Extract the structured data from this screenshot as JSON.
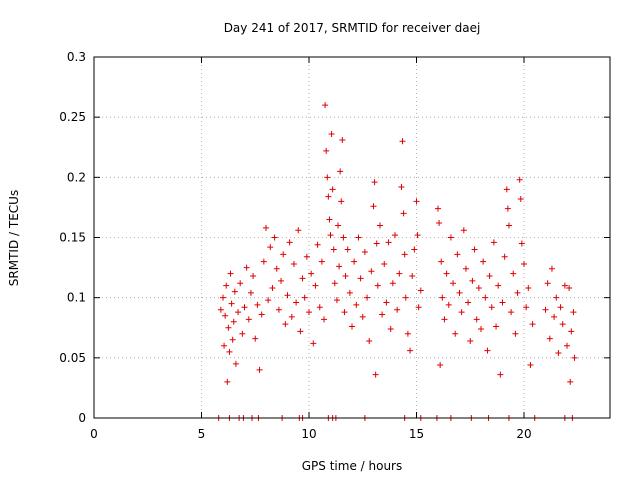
{
  "chart_data": {
    "type": "scatter",
    "title": "Day 241 of 2017, SRMTID for receiver daej",
    "xlabel": "GPS time / hours",
    "ylabel": "SRMTID / TECUs",
    "xlim": [
      0,
      24
    ],
    "ylim": [
      0,
      0.3
    ],
    "x_ticks": [
      0,
      5,
      10,
      15,
      20
    ],
    "x_tick_labels": [
      "0",
      "5",
      "10",
      "15",
      "20"
    ],
    "y_ticks": [
      0,
      0.05,
      0.1,
      0.15,
      0.2,
      0.25,
      0.3
    ],
    "y_tick_labels": [
      "0",
      "0.05",
      "0.1",
      "0.15",
      "0.2",
      "0.25",
      "0.3"
    ],
    "grid": true,
    "marker": "+",
    "color": "#e00000",
    "series": [
      {
        "name": "SRMTID",
        "points": [
          [
            5.9,
            0.09
          ],
          [
            6.0,
            0.1
          ],
          [
            6.05,
            0.06
          ],
          [
            6.1,
            0.085
          ],
          [
            6.15,
            0.11
          ],
          [
            6.2,
            0.03
          ],
          [
            6.25,
            0.075
          ],
          [
            6.3,
            0.055
          ],
          [
            6.35,
            0.12
          ],
          [
            6.4,
            0.095
          ],
          [
            6.45,
            0.065
          ],
          [
            6.5,
            0.08
          ],
          [
            6.55,
            0.105
          ],
          [
            6.6,
            0.045
          ],
          [
            6.7,
            0.088
          ],
          [
            6.8,
            0.112
          ],
          [
            6.9,
            0.07
          ],
          [
            7.0,
            0.092
          ],
          [
            7.1,
            0.125
          ],
          [
            7.2,
            0.082
          ],
          [
            7.3,
            0.104
          ],
          [
            7.4,
            0.118
          ],
          [
            7.5,
            0.066
          ],
          [
            7.6,
            0.094
          ],
          [
            7.7,
            0.04
          ],
          [
            7.8,
            0.086
          ],
          [
            7.9,
            0.13
          ],
          [
            8.0,
            0.158
          ],
          [
            8.1,
            0.098
          ],
          [
            8.2,
            0.142
          ],
          [
            8.3,
            0.108
          ],
          [
            8.4,
            0.15
          ],
          [
            8.5,
            0.124
          ],
          [
            8.6,
            0.09
          ],
          [
            8.7,
            0.114
          ],
          [
            8.8,
            0.136
          ],
          [
            8.9,
            0.078
          ],
          [
            9.0,
            0.102
          ],
          [
            9.1,
            0.146
          ],
          [
            9.2,
            0.084
          ],
          [
            9.3,
            0.128
          ],
          [
            9.4,
            0.096
          ],
          [
            9.5,
            0.156
          ],
          [
            9.6,
            0.072
          ],
          [
            9.7,
            0.116
          ],
          [
            9.8,
            0.1
          ],
          [
            9.9,
            0.134
          ],
          [
            10.0,
            0.088
          ],
          [
            10.1,
            0.12
          ],
          [
            10.2,
            0.062
          ],
          [
            10.3,
            0.11
          ],
          [
            10.4,
            0.144
          ],
          [
            10.5,
            0.092
          ],
          [
            10.6,
            0.13
          ],
          [
            10.7,
            0.082
          ],
          [
            10.75,
            0.26
          ],
          [
            10.8,
            0.222
          ],
          [
            10.85,
            0.2
          ],
          [
            10.9,
            0.184
          ],
          [
            10.95,
            0.165
          ],
          [
            11.0,
            0.152
          ],
          [
            11.05,
            0.236
          ],
          [
            11.1,
            0.19
          ],
          [
            11.15,
            0.14
          ],
          [
            11.2,
            0.112
          ],
          [
            11.3,
            0.098
          ],
          [
            11.35,
            0.16
          ],
          [
            11.4,
            0.126
          ],
          [
            11.45,
            0.205
          ],
          [
            11.5,
            0.18
          ],
          [
            11.55,
            0.231
          ],
          [
            11.6,
            0.15
          ],
          [
            11.65,
            0.088
          ],
          [
            11.7,
            0.118
          ],
          [
            11.8,
            0.14
          ],
          [
            11.9,
            0.104
          ],
          [
            12.0,
            0.076
          ],
          [
            12.1,
            0.13
          ],
          [
            12.2,
            0.094
          ],
          [
            12.3,
            0.15
          ],
          [
            12.4,
            0.116
          ],
          [
            12.5,
            0.084
          ],
          [
            12.6,
            0.138
          ],
          [
            12.7,
            0.1
          ],
          [
            12.8,
            0.064
          ],
          [
            12.9,
            0.122
          ],
          [
            13.0,
            0.176
          ],
          [
            13.05,
            0.196
          ],
          [
            13.1,
            0.036
          ],
          [
            13.15,
            0.145
          ],
          [
            13.2,
            0.11
          ],
          [
            13.3,
            0.16
          ],
          [
            13.4,
            0.086
          ],
          [
            13.5,
            0.128
          ],
          [
            13.6,
            0.096
          ],
          [
            13.7,
            0.146
          ],
          [
            13.8,
            0.074
          ],
          [
            13.9,
            0.112
          ],
          [
            14.0,
            0.152
          ],
          [
            14.1,
            0.09
          ],
          [
            14.2,
            0.12
          ],
          [
            14.3,
            0.192
          ],
          [
            14.35,
            0.23
          ],
          [
            14.4,
            0.17
          ],
          [
            14.45,
            0.136
          ],
          [
            14.5,
            0.1
          ],
          [
            14.6,
            0.07
          ],
          [
            14.7,
            0.056
          ],
          [
            14.8,
            0.118
          ],
          [
            14.9,
            0.14
          ],
          [
            15.0,
            0.18
          ],
          [
            15.05,
            0.152
          ],
          [
            15.1,
            0.092
          ],
          [
            15.2,
            0.106
          ],
          [
            16.0,
            0.174
          ],
          [
            16.05,
            0.162
          ],
          [
            16.1,
            0.044
          ],
          [
            16.15,
            0.13
          ],
          [
            16.2,
            0.1
          ],
          [
            16.3,
            0.082
          ],
          [
            16.4,
            0.12
          ],
          [
            16.5,
            0.094
          ],
          [
            16.6,
            0.15
          ],
          [
            16.7,
            0.112
          ],
          [
            16.8,
            0.07
          ],
          [
            16.9,
            0.136
          ],
          [
            17.0,
            0.104
          ],
          [
            17.1,
            0.088
          ],
          [
            17.2,
            0.156
          ],
          [
            17.3,
            0.124
          ],
          [
            17.4,
            0.096
          ],
          [
            17.5,
            0.064
          ],
          [
            17.6,
            0.114
          ],
          [
            17.7,
            0.14
          ],
          [
            17.8,
            0.082
          ],
          [
            17.9,
            0.108
          ],
          [
            18.0,
            0.074
          ],
          [
            18.1,
            0.13
          ],
          [
            18.2,
            0.1
          ],
          [
            18.3,
            0.056
          ],
          [
            18.4,
            0.118
          ],
          [
            18.5,
            0.092
          ],
          [
            18.6,
            0.146
          ],
          [
            18.7,
            0.076
          ],
          [
            18.8,
            0.11
          ],
          [
            18.9,
            0.036
          ],
          [
            19.0,
            0.096
          ],
          [
            19.1,
            0.134
          ],
          [
            19.2,
            0.19
          ],
          [
            19.25,
            0.174
          ],
          [
            19.3,
            0.16
          ],
          [
            19.4,
            0.088
          ],
          [
            19.5,
            0.12
          ],
          [
            19.6,
            0.07
          ],
          [
            19.7,
            0.104
          ],
          [
            19.8,
            0.198
          ],
          [
            19.85,
            0.182
          ],
          [
            19.9,
            0.145
          ],
          [
            20.0,
            0.128
          ],
          [
            20.1,
            0.092
          ],
          [
            20.2,
            0.108
          ],
          [
            20.3,
            0.044
          ],
          [
            20.4,
            0.078
          ],
          [
            21.0,
            0.09
          ],
          [
            21.1,
            0.112
          ],
          [
            21.2,
            0.066
          ],
          [
            21.3,
            0.124
          ],
          [
            21.4,
            0.084
          ],
          [
            21.5,
            0.1
          ],
          [
            21.6,
            0.054
          ],
          [
            21.7,
            0.092
          ],
          [
            21.8,
            0.078
          ],
          [
            21.9,
            0.11
          ],
          [
            22.0,
            0.06
          ],
          [
            22.1,
            0.108
          ],
          [
            22.15,
            0.03
          ],
          [
            22.2,
            0.072
          ],
          [
            22.3,
            0.088
          ],
          [
            22.35,
            0.05
          ]
        ],
        "zero_points": [
          5.8,
          6.3,
          6.75,
          6.95,
          7.35,
          7.65,
          8.75,
          9.55,
          9.7,
          10.9,
          11.1,
          11.25,
          12.6,
          14.45,
          15.2,
          15.95,
          16.6,
          17.55,
          18.35,
          19.3,
          20.5,
          21.9,
          22.25
        ]
      }
    ]
  }
}
